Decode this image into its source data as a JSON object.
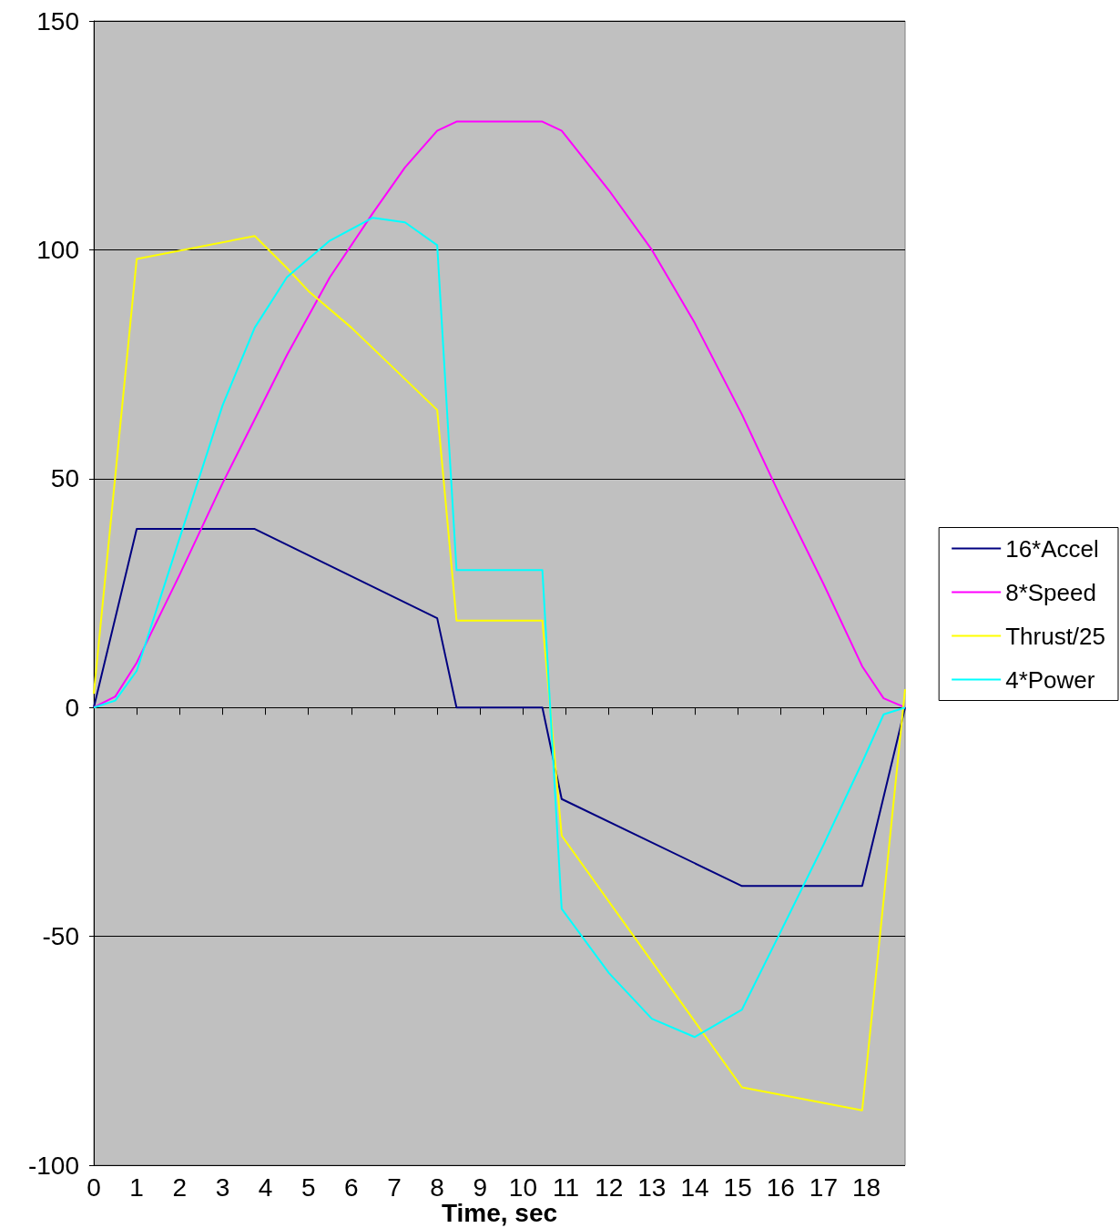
{
  "chart_data": {
    "type": "line",
    "xlabel": "Time, sec",
    "x": [
      0,
      0.5,
      1,
      2,
      3,
      3.75,
      4.5,
      5.5,
      6.5,
      7.25,
      8,
      8.45,
      10.45,
      10.9,
      12,
      13,
      14,
      15.1,
      16,
      17,
      17.9,
      18.4,
      18.9
    ],
    "series": [
      {
        "name": "16*Accel",
        "color": "#000080",
        "x": [
          0,
          1,
          3.75,
          8,
          8.45,
          10.45,
          10.9,
          15.1,
          17.9,
          18.9
        ],
        "values": [
          0,
          39,
          39,
          19.5,
          0,
          0,
          -20,
          -39,
          -39,
          0
        ]
      },
      {
        "name": "8*Speed",
        "color": "#ff00ff",
        "values": [
          0,
          2.4,
          9.8,
          29,
          49,
          63,
          77,
          94,
          108,
          118,
          126,
          128,
          128,
          126,
          113,
          100,
          84,
          64,
          46,
          27,
          9,
          2,
          0
        ]
      },
      {
        "name": "Thrust/25",
        "color": "#ffff00",
        "x": [
          0,
          1,
          3.75,
          4.5,
          5,
          6,
          7,
          8,
          8.45,
          10.45,
          10.9,
          15.1,
          17.9,
          18.9
        ],
        "values": [
          3,
          98,
          103,
          96,
          91,
          83,
          74,
          65,
          19,
          19,
          -28,
          -83,
          -88,
          4
        ]
      },
      {
        "name": "4*Power",
        "color": "#00ffff",
        "values": [
          0,
          1.5,
          8,
          37,
          66,
          83,
          94,
          102,
          107,
          106,
          101,
          30,
          30,
          -44,
          -58,
          -68,
          -72,
          -66,
          -49,
          -30,
          -12,
          -1.5,
          0
        ]
      }
    ],
    "xlim": [
      0,
      18.9
    ],
    "xticks": [
      0,
      1,
      2,
      3,
      4,
      5,
      6,
      7,
      8,
      9,
      10,
      11,
      12,
      13,
      14,
      15,
      16,
      17,
      18
    ],
    "ylim": [
      -100,
      150
    ],
    "yticks": [
      -100,
      -50,
      0,
      50,
      100,
      150
    ],
    "grid": "y",
    "legend": "right",
    "marker": "none",
    "line_style": "solid"
  }
}
